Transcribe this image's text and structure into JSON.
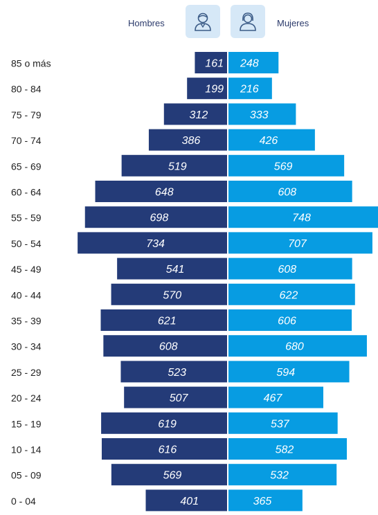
{
  "legend": {
    "men_label": "Hombres",
    "women_label": "Mujeres",
    "men_icon": "man-icon",
    "women_icon": "woman-icon"
  },
  "colors": {
    "men": "#243b78",
    "women": "#079ce2",
    "icon_bg": "#d6e8f7",
    "icon_stroke": "#3a5a86"
  },
  "chart_data": {
    "type": "bar",
    "orientation": "horizontal",
    "layout": "population-pyramid",
    "categories": [
      "85 o más",
      "80 - 84",
      "75 - 79",
      "70 - 74",
      "65 - 69",
      "60 - 64",
      "55 - 59",
      "50 - 54",
      "45 - 49",
      "40 - 44",
      "35 - 39",
      "30 - 34",
      "25 - 29",
      "20 - 24",
      "15 - 19",
      "10 - 14",
      "05 - 09",
      "0 - 04"
    ],
    "series": [
      {
        "name": "Hombres",
        "side": "left",
        "values": [
          161,
          199,
          312,
          386,
          519,
          648,
          698,
          734,
          541,
          570,
          621,
          608,
          523,
          507,
          619,
          616,
          569,
          401
        ]
      },
      {
        "name": "Mujeres",
        "side": "right",
        "values": [
          248,
          216,
          333,
          426,
          569,
          608,
          748,
          707,
          608,
          622,
          606,
          680,
          594,
          467,
          537,
          582,
          532,
          365
        ]
      }
    ],
    "xlim": [
      0,
      760
    ],
    "grid": false,
    "legend_position": "top"
  }
}
